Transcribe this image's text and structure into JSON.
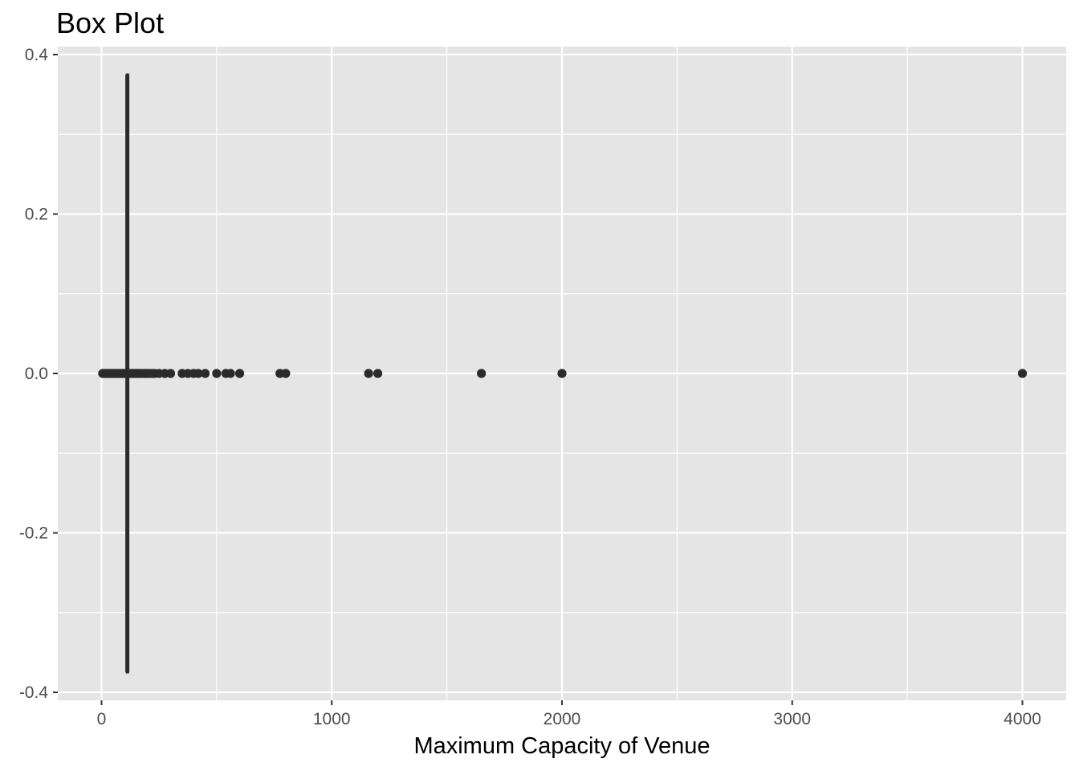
{
  "chart_data": {
    "type": "box",
    "title": "Box Plot",
    "xlabel": "Maximum Capacity of Venue",
    "ylabel": "",
    "xlim": [
      -190,
      4190
    ],
    "ylim": [
      -0.41,
      0.41
    ],
    "x_ticks": [
      0,
      1000,
      2000,
      3000,
      4000
    ],
    "x_tick_labels": [
      "0",
      "1000",
      "2000",
      "3000",
      "4000"
    ],
    "y_ticks": [
      0.4,
      0.2,
      0.0,
      -0.2,
      -0.4
    ],
    "y_tick_labels": [
      "0.4",
      "0.2",
      "0.0",
      "-0.2",
      "-0.4"
    ],
    "grid": true,
    "box": {
      "y_center": 0,
      "y_extent": [
        -0.375,
        0.375
      ],
      "lower_whisker": 0,
      "q1": 110,
      "median": 112,
      "q3": 115,
      "upper_whisker": 180
    },
    "outliers": [
      5,
      10,
      15,
      20,
      25,
      30,
      35,
      40,
      45,
      50,
      55,
      60,
      65,
      70,
      75,
      80,
      85,
      90,
      95,
      100,
      120,
      125,
      130,
      135,
      140,
      145,
      150,
      155,
      160,
      165,
      170,
      175,
      185,
      190,
      195,
      200,
      210,
      220,
      230,
      250,
      275,
      300,
      350,
      375,
      400,
      420,
      450,
      500,
      540,
      560,
      600,
      775,
      800,
      1160,
      1200,
      1650,
      2000,
      4000
    ],
    "colors": {
      "panel_background": "#e5e5e5",
      "grid": "#ffffff",
      "marks": "#2b2b2b"
    }
  }
}
